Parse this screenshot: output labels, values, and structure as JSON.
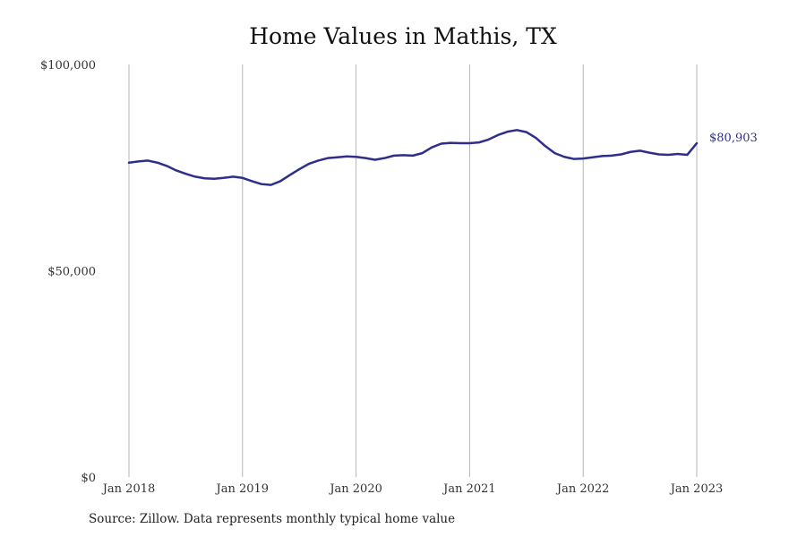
{
  "chart_data": {
    "type": "line",
    "title": "Home Values in Mathis, TX",
    "source": "Source: Zillow. Data represents monthly typical home value",
    "xlabel": "",
    "ylabel": "",
    "ylim": [
      0,
      100000
    ],
    "y_ticks": [
      {
        "value": 0,
        "label": "$0"
      },
      {
        "value": 50000,
        "label": "$50,000"
      },
      {
        "value": 100000,
        "label": "$100,000"
      }
    ],
    "x_ticks": [
      {
        "value": "2018-01",
        "label": "Jan 2018"
      },
      {
        "value": "2019-01",
        "label": "Jan 2019"
      },
      {
        "value": "2020-01",
        "label": "Jan 2020"
      },
      {
        "value": "2021-01",
        "label": "Jan 2021"
      },
      {
        "value": "2022-01",
        "label": "Jan 2022"
      },
      {
        "value": "2023-01",
        "label": "Jan 2023"
      }
    ],
    "grid": "vertical",
    "line_color": "#2e2e8c",
    "end_label": "$80,903",
    "series": [
      {
        "x": [
          "2018-01",
          "2018-02",
          "2018-03",
          "2018-04",
          "2018-05",
          "2018-06",
          "2018-07",
          "2018-08",
          "2018-09",
          "2018-10",
          "2018-11",
          "2018-12",
          "2019-01",
          "2019-02",
          "2019-03",
          "2019-04",
          "2019-05",
          "2019-06",
          "2019-07",
          "2019-08",
          "2019-09",
          "2019-10",
          "2019-11",
          "2019-12",
          "2020-01",
          "2020-02",
          "2020-03",
          "2020-04",
          "2020-05",
          "2020-06",
          "2020-07",
          "2020-08",
          "2020-09",
          "2020-10",
          "2020-11",
          "2020-12",
          "2021-01",
          "2021-02",
          "2021-03",
          "2021-04",
          "2021-05",
          "2021-06",
          "2021-07",
          "2021-08",
          "2021-09",
          "2021-10",
          "2021-11",
          "2021-12",
          "2022-01",
          "2022-02",
          "2022-03",
          "2022-04",
          "2022-05",
          "2022-06",
          "2022-07",
          "2022-08",
          "2022-09",
          "2022-10",
          "2022-11",
          "2022-12",
          "2023-01"
        ],
        "values": [
          76200,
          76500,
          76700,
          76200,
          75400,
          74300,
          73500,
          72800,
          72400,
          72300,
          72500,
          72800,
          72500,
          71700,
          71000,
          70800,
          71700,
          73200,
          74600,
          75900,
          76700,
          77300,
          77500,
          77700,
          77600,
          77300,
          76900,
          77300,
          77900,
          78000,
          77900,
          78500,
          79900,
          80800,
          81000,
          80900,
          80900,
          81100,
          81800,
          82900,
          83700,
          84100,
          83600,
          82200,
          80200,
          78500,
          77600,
          77100,
          77200,
          77500,
          77800,
          77900,
          78200,
          78800,
          79100,
          78600,
          78200,
          78100,
          78300,
          78100,
          80903
        ]
      }
    ]
  }
}
